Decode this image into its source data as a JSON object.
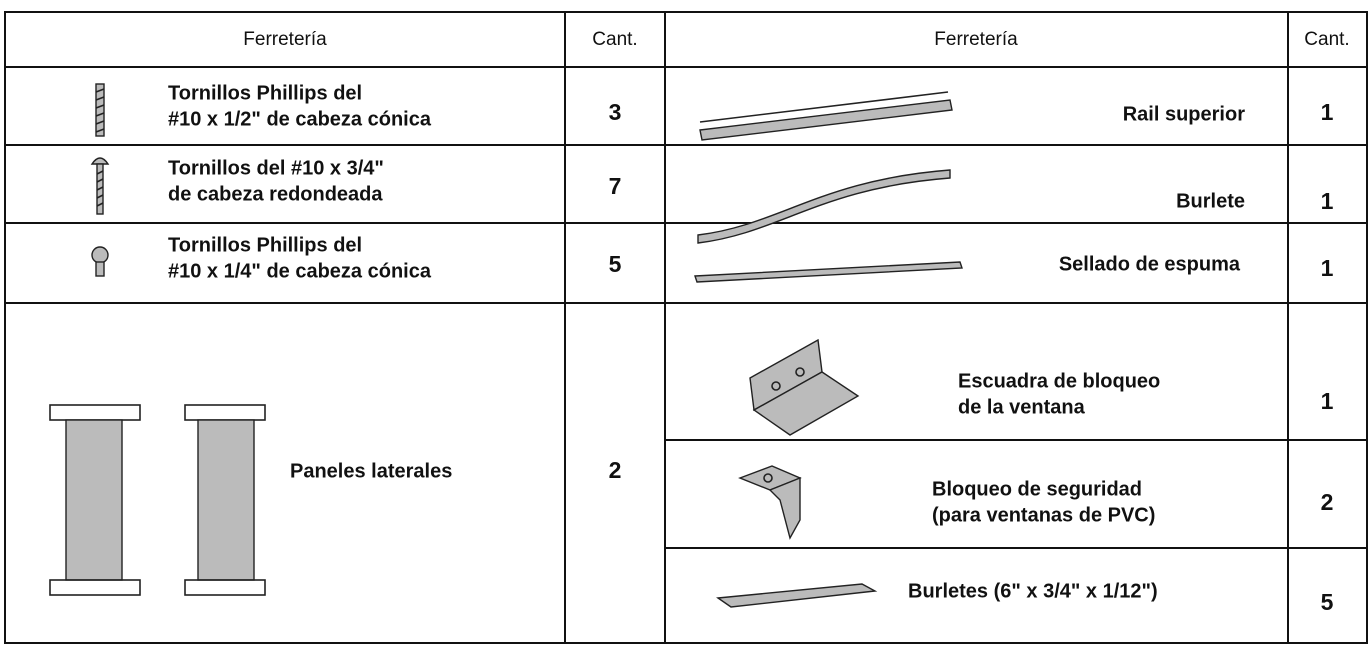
{
  "table": {
    "header": [
      "Ferretería",
      "Cant.",
      "Ferretería",
      "Cant."
    ],
    "left_rows": [
      {
        "item": [
          "Tornillos Phillips del",
          "#10 x 1/2\" de cabeza cónica"
        ],
        "qty": 3
      },
      {
        "item": [
          "Tornillos del #10 x 3/4\"",
          "de cabeza redondeada"
        ],
        "qty": 7
      },
      {
        "item": [
          "Tornillos Phillips del",
          "#10 x 1/4\" de cabeza cónica"
        ],
        "qty": 5
      },
      {
        "item": [
          "Paneles laterales"
        ],
        "qty": 2
      }
    ],
    "right_rows": [
      {
        "item": [
          "Rail superior"
        ],
        "qty": 1
      },
      {
        "item": [
          "Burlete"
        ],
        "qty": 1
      },
      {
        "item": [
          "Sellado de espuma"
        ],
        "qty": 1
      },
      {
        "item": [
          "Escuadra de bloqueo",
          "de la ventana"
        ],
        "qty": 1
      },
      {
        "item": [
          "Bloqueo de seguridad",
          "(para ventanas de PVC)"
        ],
        "qty": 2
      },
      {
        "item": [
          "Burletes (6\" x 3/4\" x 1/12\")"
        ],
        "qty": 5
      }
    ]
  }
}
